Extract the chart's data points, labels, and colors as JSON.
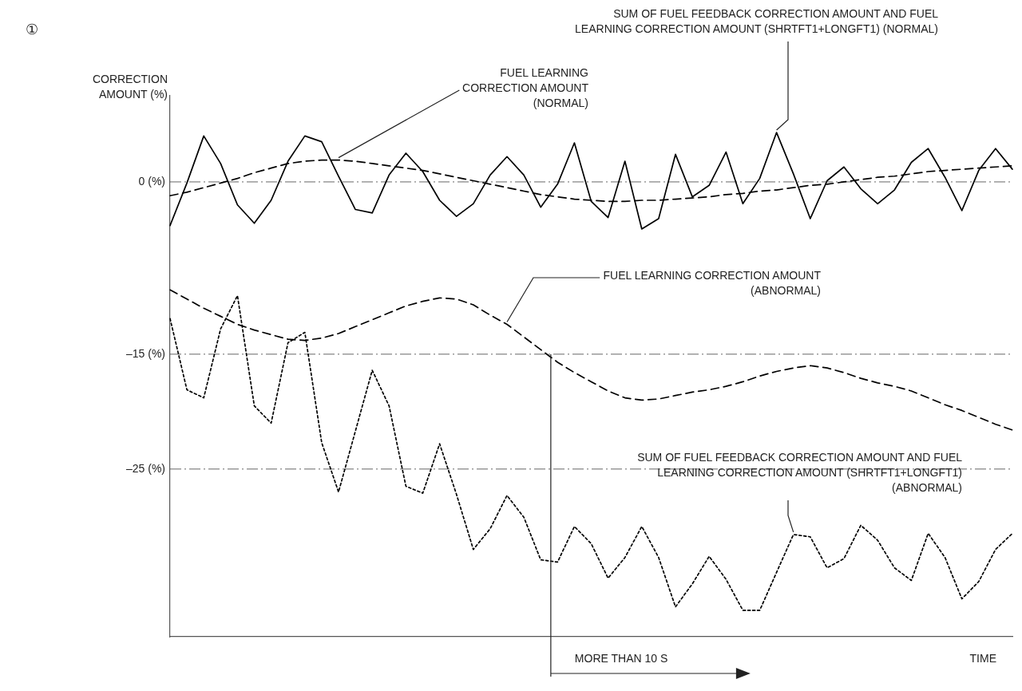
{
  "chart_data": {
    "type": "line",
    "ylabel": "CORRECTION AMOUNT (%)",
    "xlabel": "TIME",
    "annotations": [
      "①",
      "MORE THAN 10 S"
    ],
    "categories": [
      null,
      null,
      null,
      null,
      null,
      null,
      null,
      null,
      null,
      null,
      null,
      null,
      null,
      null,
      null,
      null,
      null,
      null,
      null,
      null,
      null,
      null,
      null,
      null,
      null,
      null,
      null,
      null,
      null,
      null,
      null,
      null,
      null,
      null,
      null,
      null,
      null,
      null,
      null,
      null,
      null,
      null,
      null,
      null,
      null,
      null,
      null,
      null,
      null,
      null,
      null
    ],
    "ylim": [
      -39.6,
      7.5
    ],
    "yticks": [
      {
        "value": 0,
        "label": "0 (%)"
      },
      {
        "value": -15,
        "label": "–15 (%)"
      },
      {
        "value": -25,
        "label": "–25 (%)"
      }
    ],
    "tick_labels": "y",
    "grid": false,
    "legend": false,
    "marker": "none",
    "ref_lines": [
      {
        "axis": "y",
        "value": 0,
        "color": "#666666"
      },
      {
        "axis": "y",
        "value": -15,
        "color": "#666666"
      },
      {
        "axis": "y",
        "value": -25,
        "color": "#666666"
      }
    ],
    "series": [
      {
        "name": "SUM OF FUEL FEEDBACK CORRECTION AMOUNT AND FUEL LEARNING CORRECTION AMOUNT (SHRTFT1+LONGFT1) (NORMAL)",
        "color": "#000000",
        "line_style": "solid",
        "values": [
          -3.8,
          -0.1,
          4.0,
          1.6,
          -2.0,
          -3.6,
          -1.6,
          1.8,
          4.0,
          3.5,
          0.5,
          -2.4,
          -2.7,
          0.6,
          2.5,
          0.9,
          -1.6,
          -3.0,
          -1.9,
          0.6,
          2.2,
          0.6,
          -2.2,
          -0.2,
          3.4,
          -1.7,
          -3.1,
          1.8,
          -4.1,
          -3.2,
          2.4,
          -1.3,
          -0.3,
          2.6,
          -1.9,
          0.3,
          4.3,
          0.7,
          -3.2,
          0.1,
          1.3,
          -0.6,
          -1.9,
          -0.7,
          1.7,
          2.9,
          0.4,
          -2.5,
          1.0,
          2.9,
          1.1
        ]
      },
      {
        "name": "FUEL LEARNING CORRECTION AMOUNT (NORMAL)",
        "color": "#000000",
        "line_style": "dashed",
        "values": [
          -1.2,
          -0.9,
          -0.5,
          -0.1,
          0.3,
          0.8,
          1.2,
          1.6,
          1.8,
          1.9,
          1.9,
          1.8,
          1.6,
          1.4,
          1.2,
          1.0,
          0.7,
          0.4,
          0.1,
          -0.2,
          -0.5,
          -0.8,
          -1.1,
          -1.3,
          -1.5,
          -1.6,
          -1.7,
          -1.7,
          -1.6,
          -1.6,
          -1.5,
          -1.4,
          -1.3,
          -1.1,
          -1.0,
          -0.8,
          -0.7,
          -0.5,
          -0.3,
          -0.2,
          0.0,
          0.2,
          0.4,
          0.5,
          0.7,
          0.9,
          1.0,
          1.1,
          1.2,
          1.3,
          1.4
        ]
      },
      {
        "name": "FUEL LEARNING CORRECTION AMOUNT (ABNORMAL)",
        "color": "#000000",
        "line_style": "dashed",
        "values": [
          -9.4,
          -10.2,
          -11.0,
          -11.7,
          -12.4,
          -12.9,
          -13.3,
          -13.7,
          -13.8,
          -13.6,
          -13.2,
          -12.6,
          -12.0,
          -11.4,
          -10.8,
          -10.4,
          -10.1,
          -10.2,
          -10.7,
          -11.6,
          -12.4,
          -13.5,
          -14.6,
          -15.7,
          -16.6,
          -17.4,
          -18.2,
          -18.8,
          -19.0,
          -18.9,
          -18.6,
          -18.3,
          -18.1,
          -17.8,
          -17.4,
          -16.9,
          -16.5,
          -16.2,
          -16.0,
          -16.2,
          -16.6,
          -17.1,
          -17.5,
          -17.8,
          -18.2,
          -18.8,
          -19.4,
          -19.9,
          -20.5,
          -21.1,
          -21.6
        ]
      },
      {
        "name": "SUM OF FUEL FEEDBACK CORRECTION AMOUNT AND FUEL LEARNING CORRECTION AMOUNT (SHRTFT1+LONGFT1) (ABNORMAL)",
        "color": "#000000",
        "line_style": "dotted",
        "values": [
          -11.9,
          -18.1,
          -18.8,
          -12.8,
          -9.9,
          -19.5,
          -21.0,
          -14.0,
          -13.1,
          -22.7,
          -27.0,
          -21.7,
          -16.4,
          -19.5,
          -26.5,
          -27.1,
          -22.8,
          -27.2,
          -32.0,
          -30.2,
          -27.3,
          -29.2,
          -32.9,
          -33.1,
          -30.0,
          -31.5,
          -34.5,
          -32.7,
          -30.0,
          -32.7,
          -37.0,
          -35.0,
          -32.6,
          -34.6,
          -37.3,
          -37.3,
          -34.0,
          -30.7,
          -30.9,
          -33.6,
          -32.8,
          -29.9,
          -31.2,
          -33.6,
          -34.7,
          -30.6,
          -32.7,
          -36.3,
          -34.8,
          -32.0,
          -30.6
        ]
      }
    ]
  }
}
